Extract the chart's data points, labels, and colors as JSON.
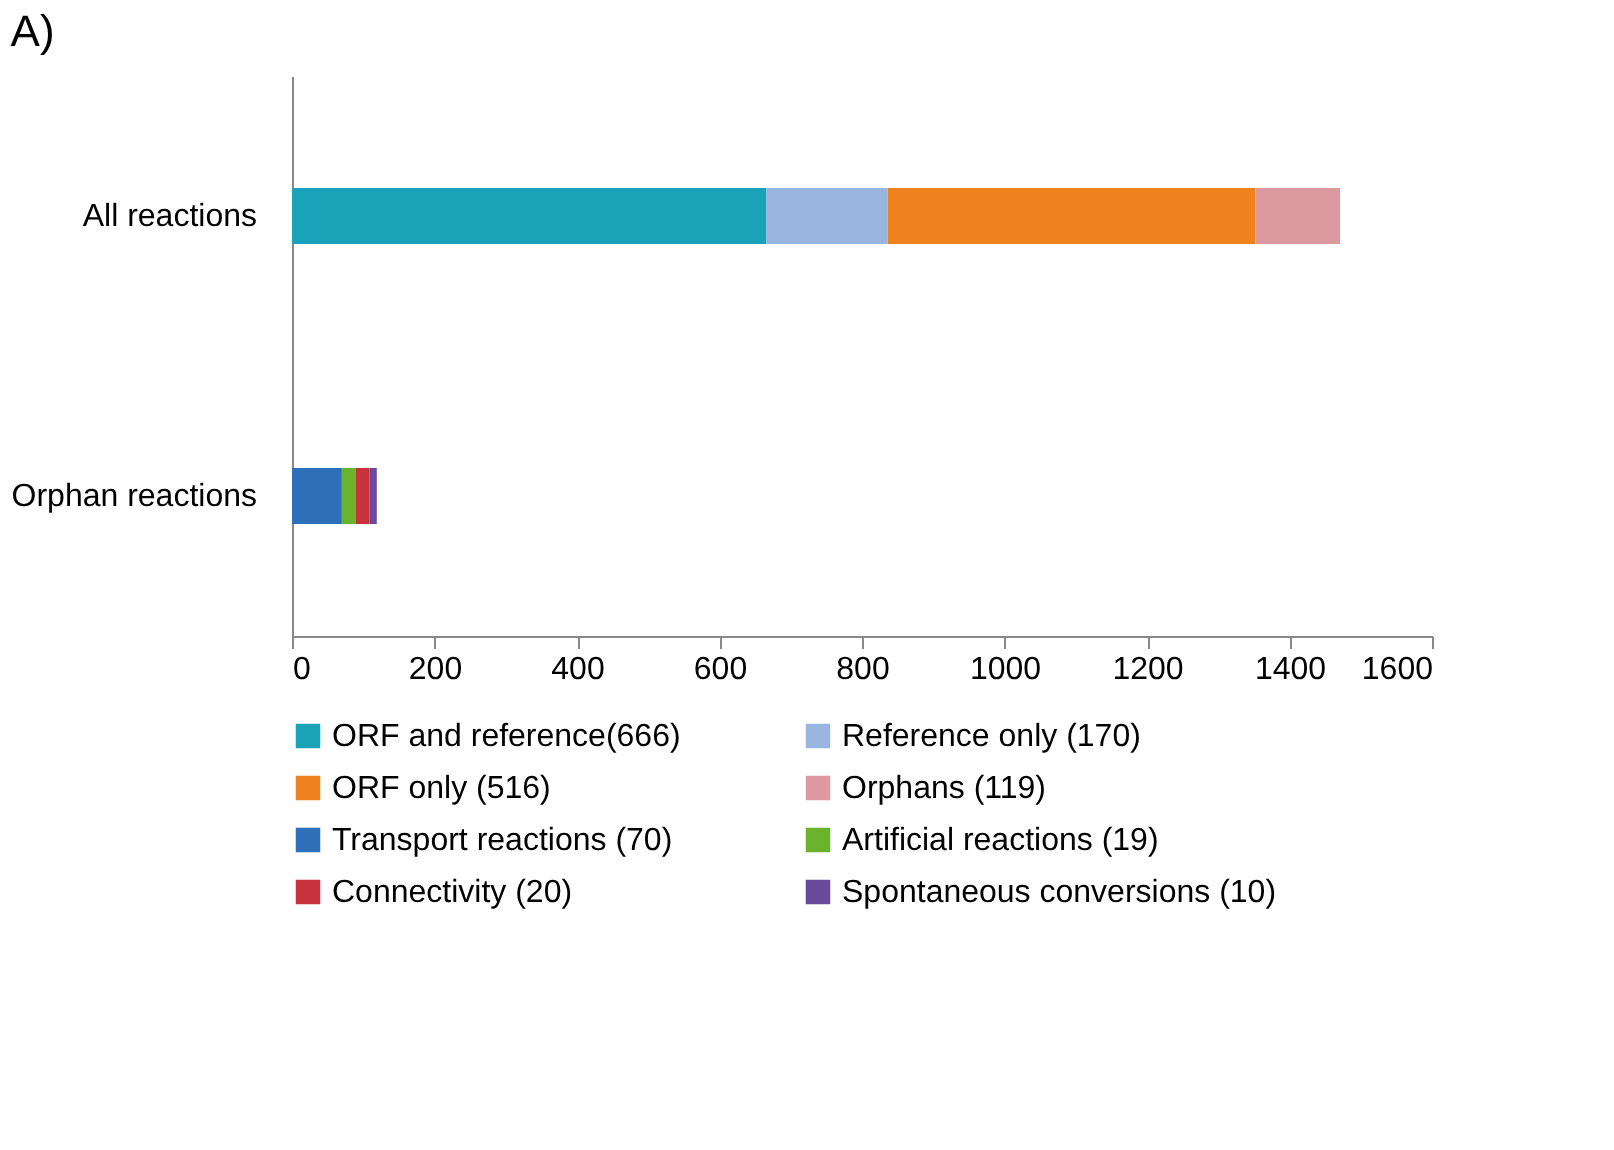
{
  "chart_data": {
    "type": "bar",
    "title": "A)",
    "orientation": "horizontal",
    "stacked": true,
    "categories": [
      "All reactions",
      "Orphan reactions"
    ],
    "series": [
      {
        "name": "ORF and reference(666)",
        "color": "#1aa3b8",
        "values": [
          666,
          null
        ]
      },
      {
        "name": "Reference only (170)",
        "color": "#9ab5e0",
        "values": [
          170,
          null
        ]
      },
      {
        "name": "ORF only (516)",
        "color": "#f0821e",
        "values": [
          516,
          null
        ]
      },
      {
        "name": "Orphans (119)",
        "color": "#dc9aa0",
        "values": [
          119,
          null
        ]
      },
      {
        "name": "Transport reactions (70)",
        "color": "#2e6fba",
        "values": [
          null,
          70
        ]
      },
      {
        "name": "Artificial reactions (19)",
        "color": "#6ab42d",
        "values": [
          null,
          19
        ]
      },
      {
        "name": "Connectivity (20)",
        "color": "#c8323c",
        "values": [
          null,
          20
        ]
      },
      {
        "name": "Spontaneous conversions (10)",
        "color": "#6a4a9a",
        "values": [
          null,
          10
        ]
      }
    ],
    "xlim": [
      0,
      1600
    ],
    "xticks": [
      0,
      200,
      400,
      600,
      800,
      1000,
      1200,
      1400,
      1600
    ],
    "grid": false,
    "legend": "bottom"
  }
}
